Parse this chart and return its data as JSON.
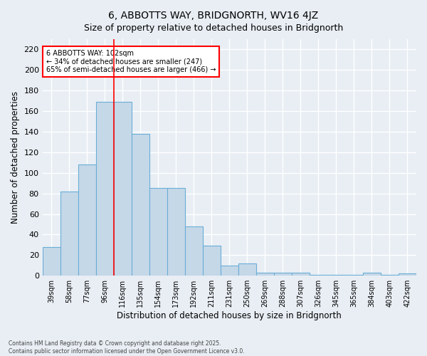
{
  "title": "6, ABBOTTS WAY, BRIDGNORTH, WV16 4JZ",
  "subtitle": "Size of property relative to detached houses in Bridgnorth",
  "xlabel": "Distribution of detached houses by size in Bridgnorth",
  "ylabel": "Number of detached properties",
  "categories": [
    "39sqm",
    "58sqm",
    "77sqm",
    "96sqm",
    "116sqm",
    "135sqm",
    "154sqm",
    "173sqm",
    "192sqm",
    "211sqm",
    "231sqm",
    "250sqm",
    "269sqm",
    "288sqm",
    "307sqm",
    "326sqm",
    "345sqm",
    "365sqm",
    "384sqm",
    "403sqm",
    "422sqm"
  ],
  "values": [
    28,
    82,
    108,
    169,
    169,
    138,
    85,
    85,
    48,
    29,
    10,
    12,
    3,
    3,
    3,
    1,
    1,
    1,
    3,
    1,
    2
  ],
  "bar_color": "#c5d8e8",
  "bar_edge_color": "#6aaed6",
  "red_line_x": 4,
  "ylim": [
    0,
    230
  ],
  "yticks": [
    0,
    20,
    40,
    60,
    80,
    100,
    120,
    140,
    160,
    180,
    200,
    220
  ],
  "annotation_text_line1": "6 ABBOTTS WAY: 102sqm",
  "annotation_text_line2": "← 34% of detached houses are smaller (247)",
  "annotation_text_line3": "65% of semi-detached houses are larger (466) →",
  "footer_line1": "Contains HM Land Registry data © Crown copyright and database right 2025.",
  "footer_line2": "Contains public sector information licensed under the Open Government Licence v3.0.",
  "background_color": "#e8eef4",
  "plot_background_color": "#e8eef4",
  "grid_color": "#ffffff",
  "title_fontsize": 10,
  "bar_width": 1.0
}
